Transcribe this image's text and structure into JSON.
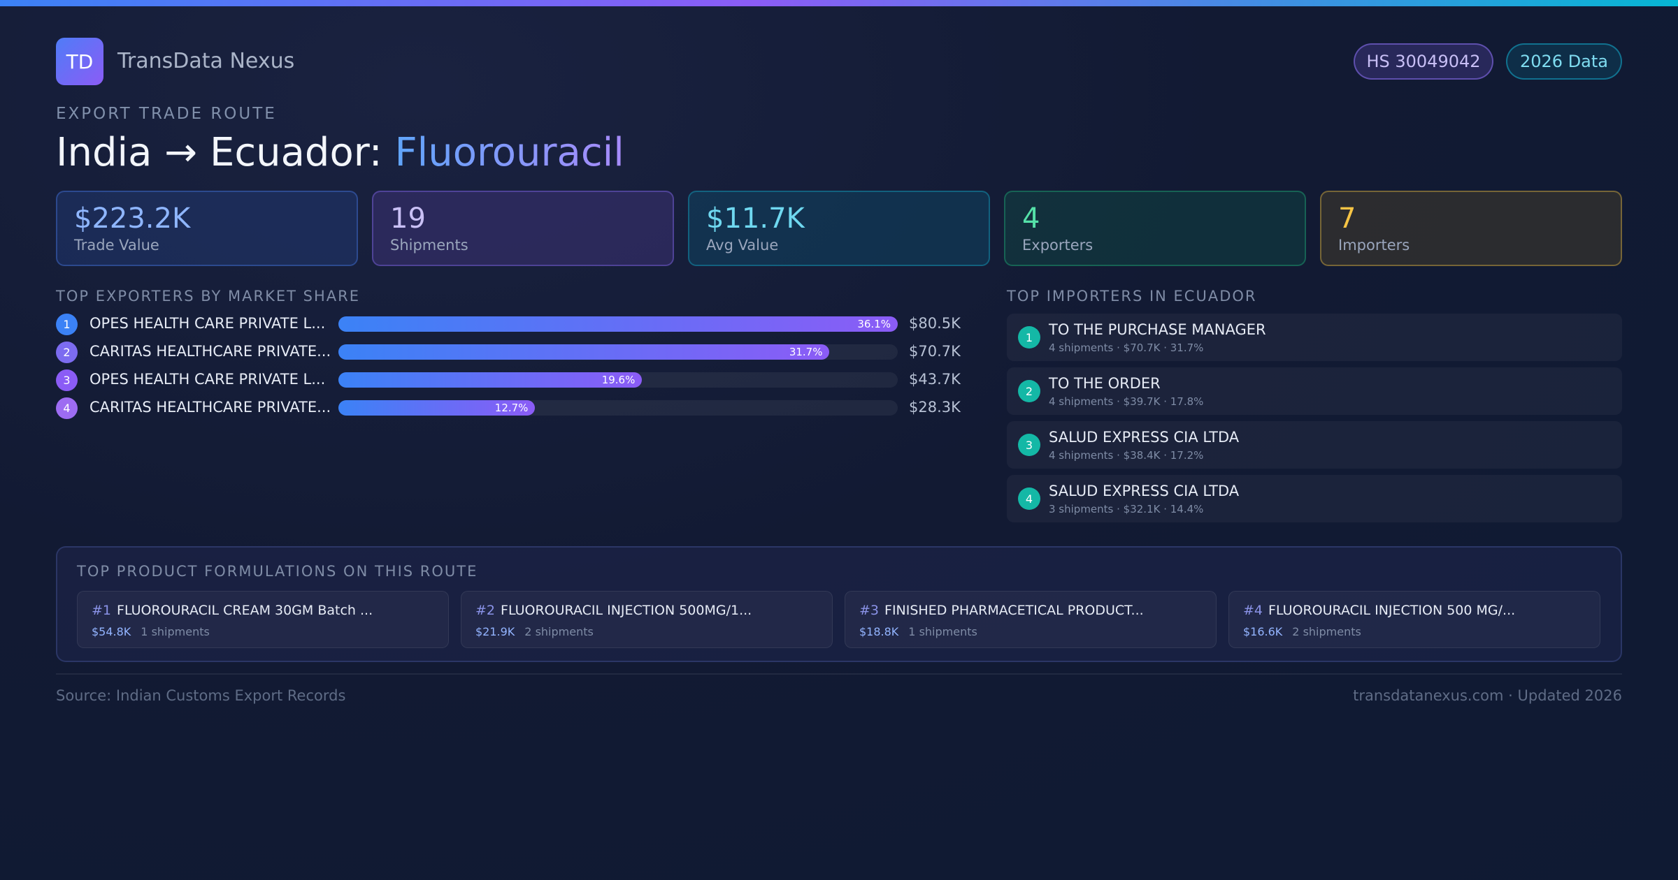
{
  "brand": {
    "logo_text": "TD",
    "name": "TransData Nexus"
  },
  "badges": {
    "hs_code": "HS 30049042",
    "data_year": "2026 Data"
  },
  "route": {
    "eyebrow": "EXPORT TRADE ROUTE",
    "title_prefix": "India → Ecuador: ",
    "product": "Fluorouracil"
  },
  "stats": [
    {
      "value": "$223.2K",
      "label": "Trade Value"
    },
    {
      "value": "19",
      "label": "Shipments"
    },
    {
      "value": "$11.7K",
      "label": "Avg Value"
    },
    {
      "value": "4",
      "label": "Exporters"
    },
    {
      "value": "7",
      "label": "Importers"
    }
  ],
  "exporters": {
    "title": "TOP EXPORTERS BY MARKET SHARE",
    "items": [
      {
        "rank": "1",
        "name": "OPES HEALTH CARE PRIVATE L...",
        "share": 36.1,
        "share_label": "36.1%",
        "value": "$80.5K",
        "color": "#3b82f6"
      },
      {
        "rank": "2",
        "name": "CARITAS HEALTHCARE PRIVATE...",
        "share": 31.7,
        "share_label": "31.7%",
        "value": "$70.7K",
        "color": "#7c6cf0"
      },
      {
        "rank": "3",
        "name": "OPES HEALTH CARE PRIVATE L...",
        "share": 19.6,
        "share_label": "19.6%",
        "value": "$43.7K",
        "color": "#8b5cf6"
      },
      {
        "rank": "4",
        "name": "CARITAS HEALTHCARE PRIVATE...",
        "share": 12.7,
        "share_label": "12.7%",
        "value": "$28.3K",
        "color": "#9d6cf2"
      }
    ]
  },
  "importers": {
    "title": "TOP IMPORTERS IN ECUADOR",
    "items": [
      {
        "rank": "1",
        "name": "TO THE PURCHASE MANAGER",
        "meta": "4 shipments · $70.7K · 31.7%"
      },
      {
        "rank": "2",
        "name": "TO THE ORDER",
        "meta": "4 shipments · $39.7K · 17.8%"
      },
      {
        "rank": "3",
        "name": "SALUD EXPRESS CIA LTDA",
        "meta": "4 shipments · $38.4K · 17.2%"
      },
      {
        "rank": "4",
        "name": "SALUD EXPRESS CIA LTDA",
        "meta": "3 shipments · $32.1K · 14.4%"
      }
    ]
  },
  "formulations": {
    "title": "TOP PRODUCT FORMULATIONS ON THIS ROUTE",
    "items": [
      {
        "num": "#1",
        "name": "FLUOROURACIL CREAM 30GM Batch ...",
        "value": "$54.8K",
        "count": "1 shipments"
      },
      {
        "num": "#2",
        "name": "FLUOROURACIL INJECTION 500MG/1...",
        "value": "$21.9K",
        "count": "2 shipments"
      },
      {
        "num": "#3",
        "name": "FINISHED PHARMACETICAL PRODUCT...",
        "value": "$18.8K",
        "count": "1 shipments"
      },
      {
        "num": "#4",
        "name": "FLUOROURACIL INJECTION 500 MG/...",
        "value": "$16.6K",
        "count": "2 shipments"
      }
    ]
  },
  "footer": {
    "source": "Source: Indian Customs Export Records",
    "site": "transdatanexus.com · Updated 2026"
  }
}
